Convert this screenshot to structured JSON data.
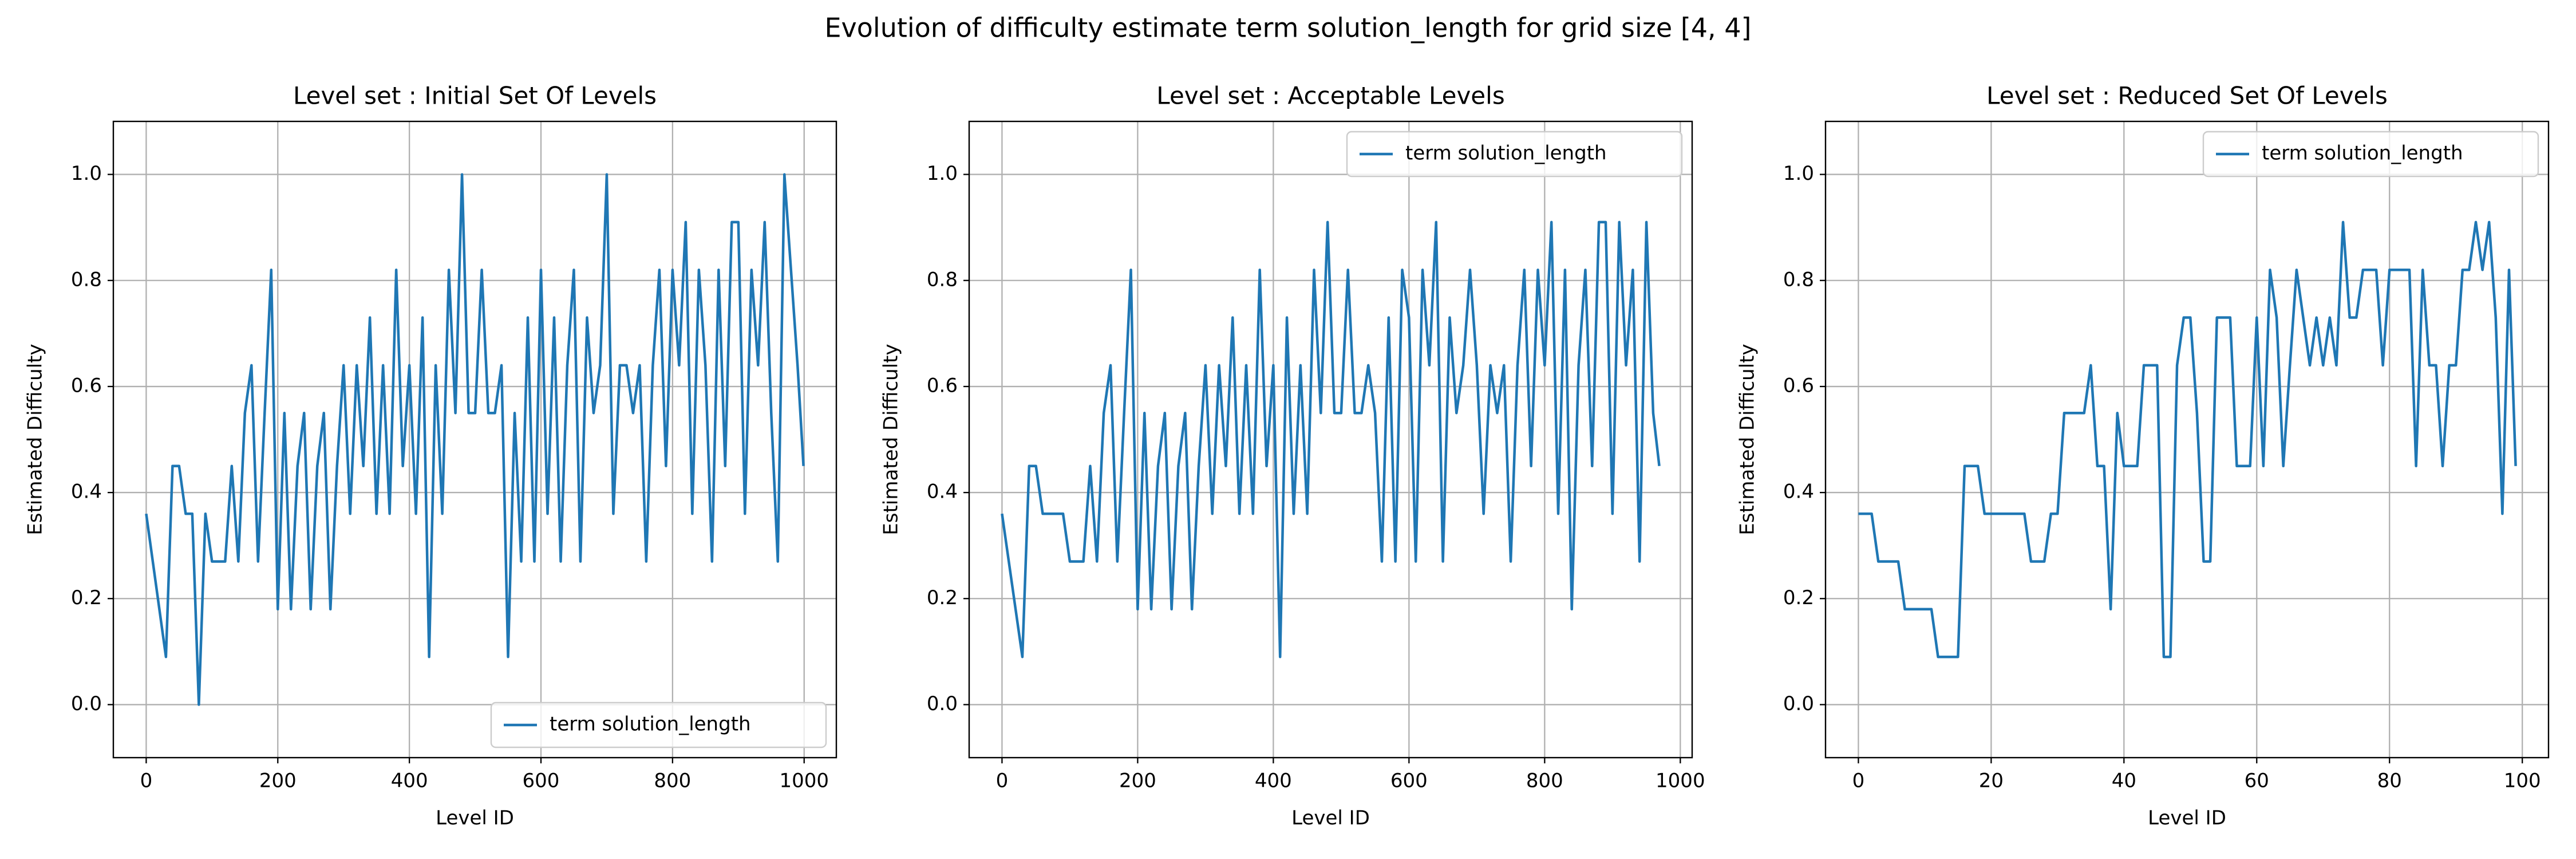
{
  "title": "Evolution of difficulty estimate term solution_length for grid size [4, 4]",
  "chart_data": [
    {
      "type": "line",
      "title": "Level set : Initial Set Of Levels",
      "x_label": "Level ID",
      "y_label": "Estimated Difficulty",
      "x": [
        0,
        10,
        20,
        30,
        40,
        50,
        60,
        70,
        80,
        90,
        100,
        110,
        120,
        130,
        140,
        150,
        160,
        170,
        180,
        190,
        200,
        210,
        220,
        230,
        240,
        250,
        260,
        270,
        280,
        290,
        300,
        310,
        320,
        330,
        340,
        350,
        360,
        370,
        380,
        390,
        400,
        410,
        420,
        430,
        440,
        450,
        460,
        470,
        480,
        490,
        500,
        510,
        520,
        530,
        540,
        550,
        560,
        570,
        580,
        590,
        600,
        610,
        620,
        630,
        640,
        650,
        660,
        670,
        680,
        690,
        700,
        710,
        720,
        730,
        740,
        750,
        760,
        770,
        780,
        790,
        800,
        810,
        820,
        830,
        840,
        850,
        860,
        870,
        880,
        890,
        900,
        910,
        920,
        930,
        940,
        950,
        960,
        970,
        980,
        990,
        999
      ],
      "series": [
        {
          "name": "term solution_length",
          "color": "#1f77b4",
          "values": [
            0.36,
            0.27,
            0.18,
            0.09,
            0.45,
            0.45,
            0.36,
            0.36,
            0.0,
            0.36,
            0.27,
            0.27,
            0.27,
            0.45,
            0.27,
            0.55,
            0.64,
            0.27,
            0.55,
            0.82,
            0.18,
            0.55,
            0.18,
            0.45,
            0.55,
            0.18,
            0.45,
            0.55,
            0.18,
            0.45,
            0.64,
            0.36,
            0.64,
            0.45,
            0.73,
            0.36,
            0.64,
            0.36,
            0.82,
            0.45,
            0.64,
            0.36,
            0.73,
            0.09,
            0.64,
            0.36,
            0.82,
            0.55,
            1.0,
            0.55,
            0.55,
            0.82,
            0.55,
            0.55,
            0.64,
            0.09,
            0.55,
            0.27,
            0.73,
            0.27,
            0.82,
            0.36,
            0.73,
            0.27,
            0.64,
            0.82,
            0.27,
            0.73,
            0.55,
            0.64,
            1.0,
            0.36,
            0.64,
            0.64,
            0.55,
            0.64,
            0.27,
            0.64,
            0.82,
            0.45,
            0.82,
            0.64,
            0.91,
            0.36,
            0.82,
            0.64,
            0.27,
            0.82,
            0.45,
            0.91,
            0.91,
            0.36,
            0.82,
            0.64,
            0.91,
            0.55,
            0.27,
            1.0,
            0.82,
            0.64,
            0.45
          ]
        }
      ],
      "xlim": [
        -49.95,
        1048.95
      ],
      "xticks": [
        0,
        200,
        400,
        600,
        800,
        1000
      ],
      "ylim": [
        -0.1,
        1.1
      ],
      "yticks": [
        {
          "value": 0,
          "label": "0.0"
        },
        0.2,
        0.4,
        0.6,
        0.8,
        {
          "value": 1,
          "label": "1.0"
        }
      ],
      "grid": true,
      "legend": "lower right"
    },
    {
      "type": "line",
      "title": "Level set : Acceptable Levels",
      "x_label": "Level ID",
      "y_label": "Estimated Difficulty",
      "x": [
        0,
        10,
        20,
        30,
        40,
        50,
        60,
        70,
        80,
        90,
        100,
        110,
        120,
        130,
        140,
        150,
        160,
        170,
        180,
        190,
        200,
        210,
        220,
        230,
        240,
        250,
        260,
        270,
        280,
        290,
        300,
        310,
        320,
        330,
        340,
        350,
        360,
        370,
        380,
        390,
        400,
        410,
        420,
        430,
        440,
        450,
        460,
        470,
        480,
        490,
        500,
        510,
        520,
        530,
        540,
        550,
        560,
        570,
        580,
        590,
        600,
        610,
        620,
        630,
        640,
        650,
        660,
        670,
        680,
        690,
        700,
        710,
        720,
        730,
        740,
        750,
        760,
        770,
        780,
        790,
        800,
        810,
        820,
        830,
        840,
        850,
        860,
        870,
        880,
        890,
        900,
        910,
        920,
        930,
        940,
        950,
        960,
        969
      ],
      "series": [
        {
          "name": "term solution_length",
          "color": "#1f77b4",
          "values": [
            0.36,
            0.27,
            0.18,
            0.09,
            0.45,
            0.45,
            0.36,
            0.36,
            0.36,
            0.36,
            0.27,
            0.27,
            0.27,
            0.45,
            0.27,
            0.55,
            0.64,
            0.27,
            0.55,
            0.82,
            0.18,
            0.55,
            0.18,
            0.45,
            0.55,
            0.18,
            0.45,
            0.55,
            0.18,
            0.45,
            0.64,
            0.36,
            0.64,
            0.45,
            0.73,
            0.36,
            0.64,
            0.36,
            0.82,
            0.45,
            0.64,
            0.09,
            0.73,
            0.36,
            0.64,
            0.36,
            0.82,
            0.55,
            0.91,
            0.55,
            0.55,
            0.82,
            0.55,
            0.55,
            0.64,
            0.55,
            0.27,
            0.73,
            0.27,
            0.82,
            0.73,
            0.27,
            0.82,
            0.64,
            0.91,
            0.27,
            0.73,
            0.55,
            0.64,
            0.82,
            0.64,
            0.36,
            0.64,
            0.55,
            0.64,
            0.27,
            0.64,
            0.82,
            0.45,
            0.82,
            0.64,
            0.91,
            0.36,
            0.82,
            0.18,
            0.64,
            0.82,
            0.45,
            0.91,
            0.91,
            0.36,
            0.91,
            0.64,
            0.82,
            0.27,
            0.91,
            0.55,
            0.45
          ]
        }
      ],
      "xlim": [
        -48.45,
        1017.45
      ],
      "xticks": [
        0,
        200,
        400,
        600,
        800,
        1000
      ],
      "ylim": [
        -0.1,
        1.1
      ],
      "yticks": [
        {
          "value": 0,
          "label": "0.0"
        },
        0.2,
        0.4,
        0.6,
        0.8,
        {
          "value": 1,
          "label": "1.0"
        }
      ],
      "grid": true,
      "legend": "upper right"
    },
    {
      "type": "line",
      "title": "Level set : Reduced Set Of Levels",
      "x_label": "Level ID",
      "y_label": "Estimated Difficulty",
      "x": [
        0,
        1,
        2,
        3,
        4,
        5,
        6,
        7,
        8,
        9,
        10,
        11,
        12,
        13,
        14,
        15,
        16,
        17,
        18,
        19,
        20,
        21,
        22,
        23,
        24,
        25,
        26,
        27,
        28,
        29,
        30,
        31,
        32,
        33,
        34,
        35,
        36,
        37,
        38,
        39,
        40,
        41,
        42,
        43,
        44,
        45,
        46,
        47,
        48,
        49,
        50,
        51,
        52,
        53,
        54,
        55,
        56,
        57,
        58,
        59,
        60,
        61,
        62,
        63,
        64,
        65,
        66,
        67,
        68,
        69,
        70,
        71,
        72,
        73,
        74,
        75,
        76,
        77,
        78,
        79,
        80,
        81,
        82,
        83,
        84,
        85,
        86,
        87,
        88,
        89,
        90,
        91,
        92,
        93,
        94,
        95,
        96,
        97,
        98,
        99
      ],
      "series": [
        {
          "name": "term solution_length",
          "color": "#1f77b4",
          "values": [
            0.36,
            0.36,
            0.36,
            0.27,
            0.27,
            0.27,
            0.27,
            0.18,
            0.18,
            0.18,
            0.18,
            0.18,
            0.09,
            0.09,
            0.09,
            0.09,
            0.45,
            0.45,
            0.45,
            0.36,
            0.36,
            0.36,
            0.36,
            0.36,
            0.36,
            0.36,
            0.27,
            0.27,
            0.27,
            0.36,
            0.36,
            0.55,
            0.55,
            0.55,
            0.55,
            0.64,
            0.45,
            0.45,
            0.18,
            0.55,
            0.45,
            0.45,
            0.45,
            0.64,
            0.64,
            0.64,
            0.09,
            0.09,
            0.64,
            0.73,
            0.73,
            0.55,
            0.27,
            0.27,
            0.73,
            0.73,
            0.73,
            0.45,
            0.45,
            0.45,
            0.73,
            0.45,
            0.82,
            0.73,
            0.45,
            0.64,
            0.82,
            0.73,
            0.64,
            0.73,
            0.64,
            0.73,
            0.64,
            0.91,
            0.73,
            0.73,
            0.82,
            0.82,
            0.82,
            0.64,
            0.82,
            0.82,
            0.82,
            0.82,
            0.45,
            0.82,
            0.64,
            0.64,
            0.45,
            0.64,
            0.64,
            0.82,
            0.82,
            0.91,
            0.82,
            0.91,
            0.73,
            0.36,
            0.82,
            0.45
          ]
        }
      ],
      "xlim": [
        -4.95,
        103.95
      ],
      "xticks": [
        0,
        20,
        40,
        60,
        80,
        100
      ],
      "ylim": [
        -0.1,
        1.1
      ],
      "yticks": [
        {
          "value": 0,
          "label": "0.0"
        },
        0.2,
        0.4,
        0.6,
        0.8,
        {
          "value": 1,
          "label": "1.0"
        }
      ],
      "grid": true,
      "legend": "upper right"
    }
  ]
}
